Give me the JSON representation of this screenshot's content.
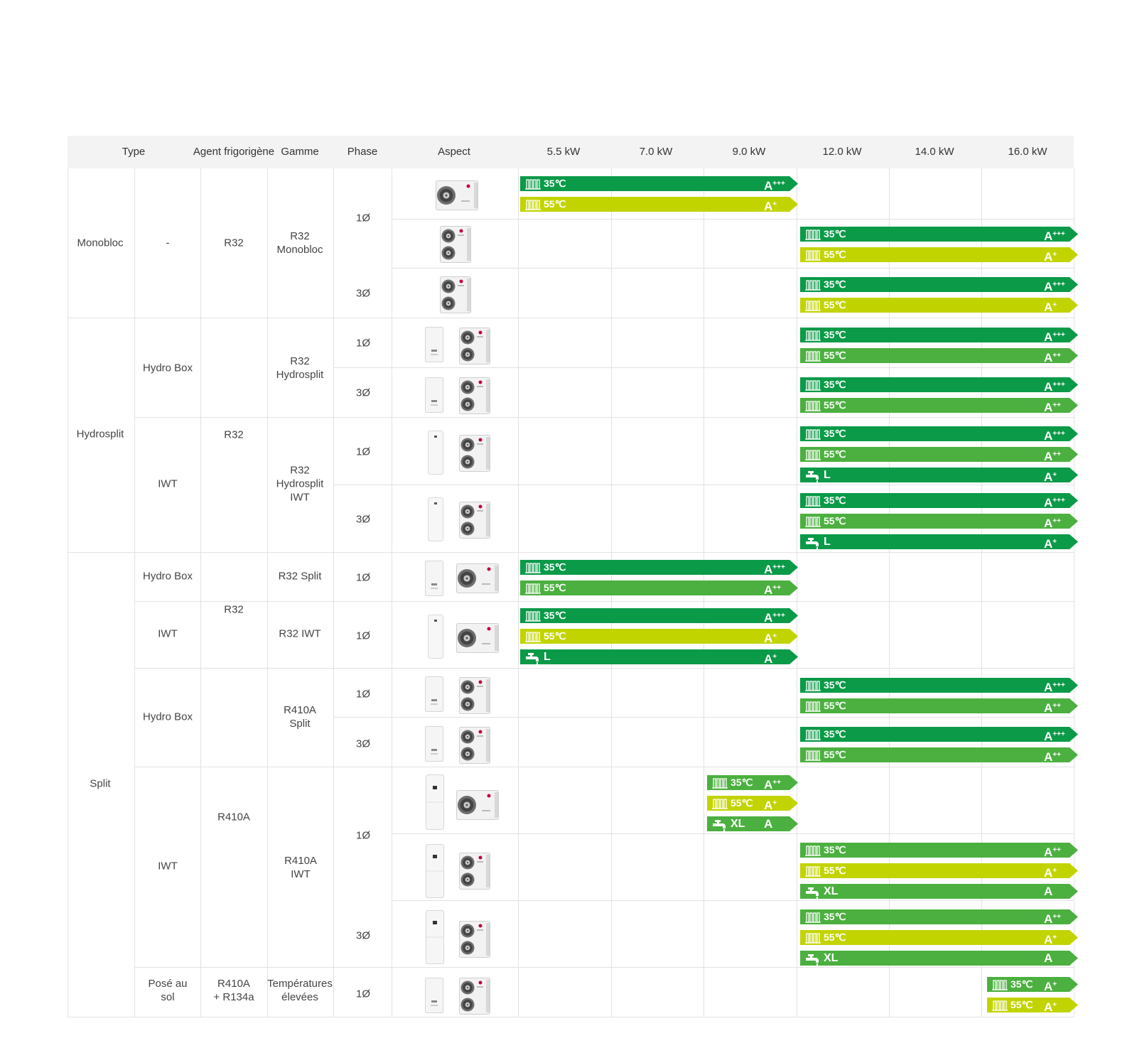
{
  "colors": {
    "dark_green": "#0a9a48",
    "mid_green": "#4bb03f",
    "yellow_green": "#c2d400",
    "header_bg": "#f3f3f3",
    "grid": "#e2e2e2"
  },
  "header": {
    "type": "Type",
    "refrigerant": "Agent frigorigène",
    "range": "Gamme",
    "phase": "Phase",
    "aspect": "Aspect",
    "powers": [
      "5.5 kW",
      "7.0 kW",
      "9.0 kW",
      "12.0 kW",
      "14.0 kW",
      "16.0 kW"
    ]
  },
  "groups": {
    "monobloc": "Monobloc",
    "hydrosplit": "Hydrosplit",
    "split": "Split"
  },
  "subtypes": {
    "dash": "-",
    "hydro_box_1": "Hydro Box",
    "iwt_1": "IWT",
    "hydro_box_2": "Hydro Box",
    "iwt_2": "IWT",
    "hydro_box_3": "Hydro Box",
    "iwt_3": "IWT",
    "floor_1": "Posé au",
    "floor_2": "sol"
  },
  "refrigerants": {
    "r32_a": "R32",
    "r32_b": "R32",
    "r32_c": "R32",
    "r410a": "R410A",
    "r410a_mix_1": "R410A",
    "r410a_mix_2": "+ R134a"
  },
  "ranges": {
    "r32_monobloc_1": "R32",
    "r32_monobloc_2": "Monobloc",
    "r32_hydrosplit_1": "R32",
    "r32_hydrosplit_2": "Hydrosplit",
    "r32_hs_iwt_1": "R32",
    "r32_hs_iwt_2": "Hydrosplit",
    "r32_hs_iwt_3": "IWT",
    "r32_split": "R32 Split",
    "r32_iwt": "R32 IWT",
    "r410a_split_1": "R410A",
    "r410a_split_2": "Split",
    "r410a_iwt_1": "R410A",
    "r410a_iwt_2": "IWT",
    "high_temp_1": "Températures",
    "high_temp_2": "élevées"
  },
  "phases": [
    "1Ø",
    "3Ø",
    "1Ø",
    "3Ø",
    "1Ø",
    "3Ø",
    "1Ø",
    "1Ø",
    "1Ø",
    "3Ø",
    "1Ø",
    "3Ø",
    "1Ø"
  ],
  "ratings": [
    {
      "span": "5.5–9.0 kW",
      "labels": [
        [
          "35℃",
          "A+++"
        ],
        [
          "55℃",
          "A+"
        ]
      ]
    },
    {
      "span": "12.0–16.0 kW",
      "labels": [
        [
          "35℃",
          "A+++"
        ],
        [
          "55℃",
          "A+"
        ]
      ]
    },
    {
      "span": "12.0–16.0 kW",
      "labels": [
        [
          "35℃",
          "A+++"
        ],
        [
          "55℃",
          "A+"
        ]
      ]
    },
    {
      "span": "12.0–16.0 kW",
      "labels": [
        [
          "35℃",
          "A+++"
        ],
        [
          "55℃",
          "A++"
        ]
      ]
    },
    {
      "span": "12.0–16.0 kW",
      "labels": [
        [
          "35℃",
          "A+++"
        ],
        [
          "55℃",
          "A++"
        ]
      ]
    },
    {
      "span": "12.0–16.0 kW",
      "labels": [
        [
          "35℃",
          "A+++"
        ],
        [
          "55℃",
          "A++"
        ],
        [
          "L",
          "A+"
        ]
      ]
    },
    {
      "span": "12.0–16.0 kW",
      "labels": [
        [
          "35℃",
          "A+++"
        ],
        [
          "55℃",
          "A++"
        ],
        [
          "L",
          "A+"
        ]
      ]
    },
    {
      "span": "5.5–9.0 kW",
      "labels": [
        [
          "35℃",
          "A+++"
        ],
        [
          "55℃",
          "A++"
        ]
      ]
    },
    {
      "span": "5.5–9.0 kW",
      "labels": [
        [
          "35℃",
          "A+++"
        ],
        [
          "55℃",
          "A+"
        ],
        [
          "L",
          "A+"
        ]
      ]
    },
    {
      "span": "12.0–16.0 kW",
      "labels": [
        [
          "35℃",
          "A+++"
        ],
        [
          "55℃",
          "A++"
        ]
      ]
    },
    {
      "span": "12.0–16.0 kW",
      "labels": [
        [
          "35℃",
          "A+++"
        ],
        [
          "55℃",
          "A++"
        ]
      ]
    },
    {
      "span": "9.0 kW",
      "labels": [
        [
          "35℃",
          "A++"
        ],
        [
          "55℃",
          "A+"
        ],
        [
          "XL",
          "A"
        ]
      ]
    },
    {
      "span": "12.0–16.0 kW",
      "labels": [
        [
          "35℃",
          "A++"
        ],
        [
          "55℃",
          "A+"
        ],
        [
          "XL",
          "A"
        ]
      ]
    },
    {
      "span": "12.0–16.0 kW",
      "labels": [
        [
          "35℃",
          "A++"
        ],
        [
          "55℃",
          "A+"
        ],
        [
          "XL",
          "A"
        ]
      ]
    },
    {
      "span": "16.0 kW",
      "labels": [
        [
          "35℃",
          "A+"
        ],
        [
          "55℃",
          "A+"
        ]
      ]
    }
  ]
}
